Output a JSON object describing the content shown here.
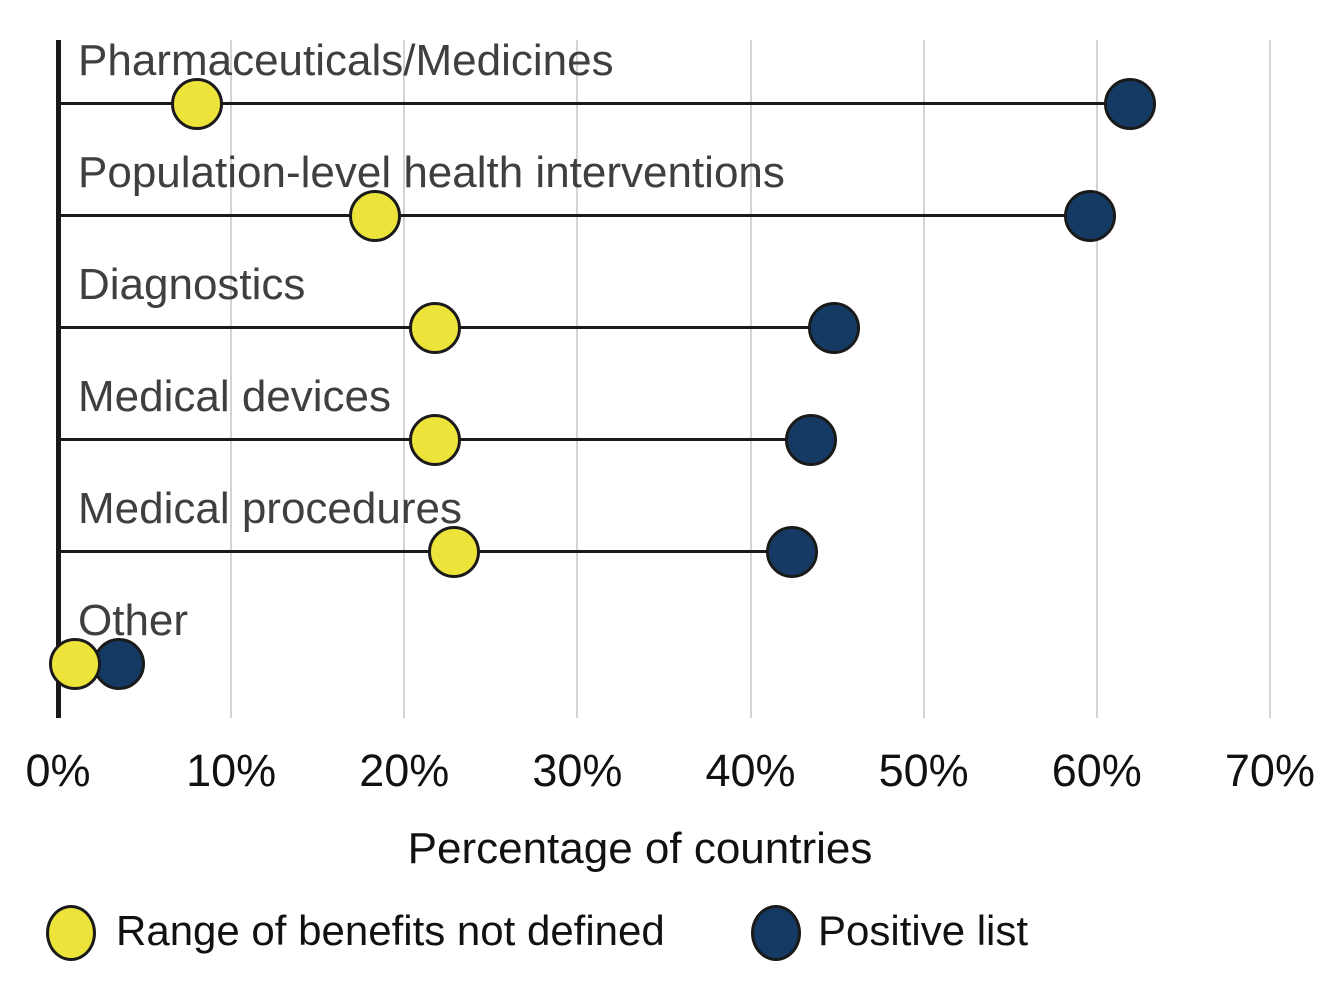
{
  "chart_data": {
    "type": "scatter",
    "subtype": "dumbbell-lollipop",
    "title": "",
    "categories": [
      "Pharmaceuticals/Medicines",
      "Population-level health interventions",
      "Diagnostics",
      "Medical devices",
      "Medical procedures",
      "Other"
    ],
    "series": [
      {
        "name": "Range of benefits not defined",
        "color": "#ECE33B",
        "values": [
          8,
          18.3,
          21.8,
          21.8,
          22.9,
          1
        ]
      },
      {
        "name": "Positive list",
        "color": "#143A64",
        "values": [
          61.9,
          59.6,
          44.8,
          43.5,
          42.4,
          3.5
        ]
      }
    ],
    "xlabel": "Percentage of countries",
    "ylabel": "",
    "x_tick_labels": [
      "0%",
      "10%",
      "20%",
      "30%",
      "40%",
      "50%",
      "60%",
      "70%"
    ],
    "x_tick_values": [
      0,
      10,
      20,
      30,
      40,
      50,
      60,
      70
    ],
    "xlim": [
      0,
      73.7
    ],
    "grid": "vertical",
    "legend_position": "bottom"
  },
  "styles": {
    "yellow": "#ECE33B",
    "navy": "#143A64",
    "grid_color": "#d4d4d4",
    "axis_color": "#1a1a1a",
    "category_label_color": "#3f3f3f",
    "text_color": "#111111",
    "background": "#ffffff"
  }
}
